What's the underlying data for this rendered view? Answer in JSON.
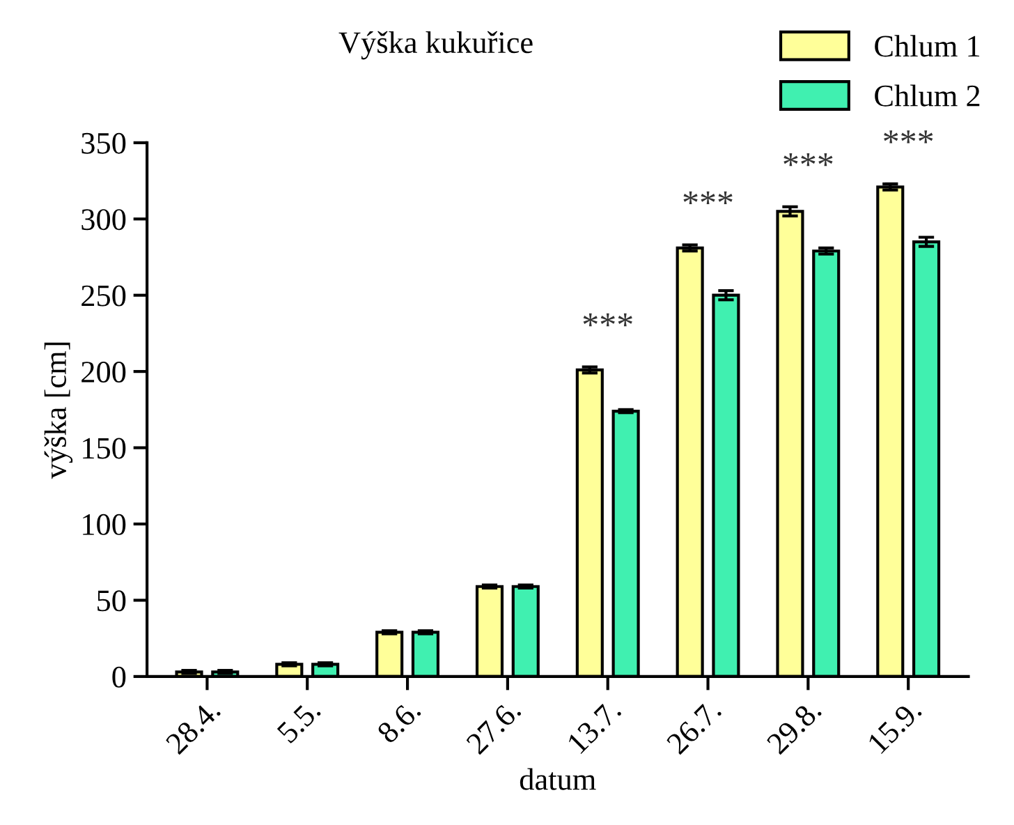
{
  "chart_data": {
    "type": "bar",
    "title": "Výška kukuřice",
    "xlabel": "datum",
    "ylabel": "výška [cm]",
    "categories": [
      "28.4.",
      "5.5.",
      "8.6.",
      "27.6.",
      "13.7.",
      "26.7.",
      "29.8.",
      "15.9."
    ],
    "series": [
      {
        "name": "Chlum 1",
        "color": "#ffff99",
        "values": [
          3,
          8,
          29,
          59,
          201,
          281,
          305,
          321
        ],
        "errors": [
          1,
          1,
          1,
          1,
          2,
          2,
          3,
          2
        ]
      },
      {
        "name": "Chlum 2",
        "color": "#40f0b0",
        "values": [
          3,
          8,
          29,
          59,
          174,
          250,
          279,
          285
        ],
        "errors": [
          1,
          1,
          1,
          1,
          1,
          3,
          2,
          3
        ]
      }
    ],
    "ylim": [
      0,
      350
    ],
    "yticks": [
      0,
      50,
      100,
      150,
      200,
      250,
      300,
      350
    ],
    "grid": false,
    "legend": "top right",
    "annotations": [
      "***",
      "***",
      "***",
      "***"
    ]
  }
}
